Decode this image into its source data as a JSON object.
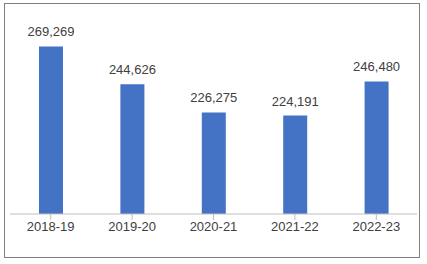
{
  "chart_data": {
    "type": "bar",
    "categories": [
      "2018-19",
      "2019-20",
      "2020-21",
      "2021-22",
      "2022-23"
    ],
    "values": [
      269269,
      244626,
      226275,
      224191,
      246480
    ],
    "value_labels": [
      "269,269",
      "244,626",
      "226,275",
      "224,191",
      "246,480"
    ],
    "color": "#4472c4",
    "ylim": [
      160000,
      280000
    ],
    "yticks": [
      160000,
      180000,
      200000,
      220000,
      240000,
      260000,
      280000
    ],
    "grid": false,
    "data_labels": true,
    "tick_labels": "x"
  }
}
